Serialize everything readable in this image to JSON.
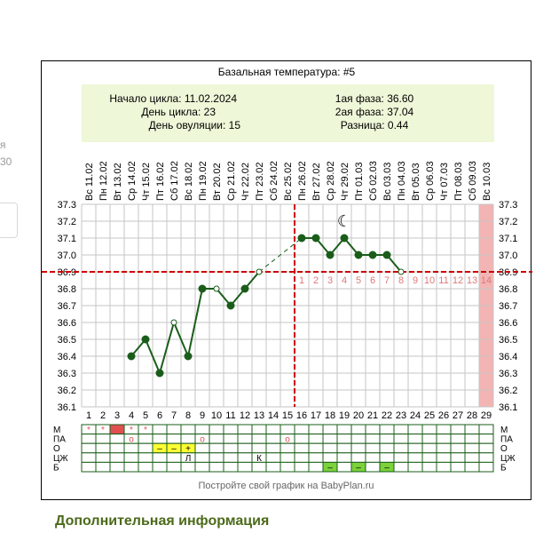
{
  "page": {
    "side_fragment_1": "я",
    "side_fragment_2": "30",
    "footer": "Постройте свой график на BabyPlan.ru",
    "extra_info_heading": "Дополнительная информация"
  },
  "colors": {
    "series": "#1a5d1a",
    "coverline": "#cc0000",
    "info_box": "#eef7d8",
    "grid": "#c6c6c6",
    "period_column": "#f3b4b4",
    "mucus_yellow": "#ffff33",
    "bleeding_red": "#e05050",
    "bleeding_green": "#7bd23a",
    "pink_text": "#e07878"
  },
  "info": {
    "cycle_start": "Начало цикла: 11.02.2024",
    "cycle_day": "День цикла: 23",
    "ovulation_day": "День овуляции: 15",
    "phase1": "1ая фаза: 36.60",
    "phase2": "2ая фаза: 37.04",
    "difference": "Разница: 0.44"
  },
  "chart_data": {
    "type": "line",
    "title": "Базальная температура: #5",
    "weekdays": [
      "Вс",
      "Пн",
      "Вт",
      "Ср",
      "Чт",
      "Пт",
      "Сб",
      "Вс",
      "Пн",
      "Вт",
      "Ср",
      "Чт",
      "Пт",
      "Сб",
      "Вс",
      "Пн",
      "Вт",
      "Ср",
      "Чт",
      "Пт",
      "Сб",
      "Вс",
      "Пн",
      "Вт",
      "Ср",
      "Чт",
      "Пт",
      "Сб",
      "Вс"
    ],
    "dates": [
      "11.02",
      "12.02",
      "13.02",
      "14.02",
      "15.02",
      "16.02",
      "17.02",
      "18.02",
      "19.02",
      "20.02",
      "21.02",
      "22.02",
      "23.02",
      "24.02",
      "25.02",
      "26.02",
      "27.02",
      "28.02",
      "29.02",
      "01.03",
      "02.03",
      "03.03",
      "04.03",
      "05.03",
      "06.03",
      "07.03",
      "08.03",
      "09.03",
      "10.03"
    ],
    "days": [
      "1",
      "2",
      "3",
      "4",
      "5",
      "6",
      "7",
      "8",
      "9",
      "10",
      "11",
      "12",
      "13",
      "14",
      "15",
      "16",
      "17",
      "18",
      "19",
      "20",
      "21",
      "22",
      "23",
      "24",
      "25",
      "26",
      "27",
      "28",
      "29"
    ],
    "y_ticks": [
      "36.1",
      "36.2",
      "36.3",
      "36.4",
      "36.5",
      "36.6",
      "36.7",
      "36.8",
      "36.9",
      "37.0",
      "37.1",
      "37.2",
      "37.3"
    ],
    "ylim": [
      36.1,
      37.3
    ],
    "x": [
      4,
      5,
      6,
      7,
      8,
      9,
      10,
      11,
      12,
      13,
      16,
      17,
      18,
      19,
      20,
      21,
      22,
      23
    ],
    "y": [
      36.4,
      36.5,
      36.3,
      36.6,
      36.4,
      36.8,
      36.8,
      36.7,
      36.8,
      36.9,
      37.1,
      37.1,
      37.0,
      37.1,
      37.0,
      37.0,
      37.0,
      36.9
    ],
    "open_markers": [
      7,
      10,
      13,
      23
    ],
    "dashed_link": [
      13,
      16
    ],
    "coverline": 36.9,
    "ovulation_day": 15,
    "luteal_numbers": [
      "1",
      "2",
      "3",
      "4",
      "5",
      "6",
      "7",
      "8",
      "9",
      "10",
      "11",
      "12",
      "13",
      "14"
    ],
    "luteal_start_day": 16,
    "moon_day": 19,
    "moon_symbol": "☾",
    "highlight_day": 29,
    "grid": true,
    "rows": [
      {
        "label": "М",
        "cells": {
          "1": "*",
          "2": "*",
          "4": "*",
          "5": "*"
        },
        "filled": {
          "3": "red"
        }
      },
      {
        "label": "ПА",
        "cells": {
          "4": "o",
          "9": "o",
          "15": "o"
        },
        "filled": {}
      },
      {
        "label": "О",
        "cells": {
          "6": "–",
          "7": "–",
          "8": "+"
        },
        "filled": {
          "6": "yellow",
          "7": "yellow",
          "8": "yellow"
        }
      },
      {
        "label": "ЦЖ",
        "cells": {
          "8": "Л",
          "13": "К"
        },
        "filled": {}
      },
      {
        "label": "Б",
        "cells": {
          "18": "–",
          "20": "–",
          "22": "–"
        },
        "filled": {
          "18": "green",
          "20": "green",
          "22": "green"
        }
      }
    ]
  }
}
